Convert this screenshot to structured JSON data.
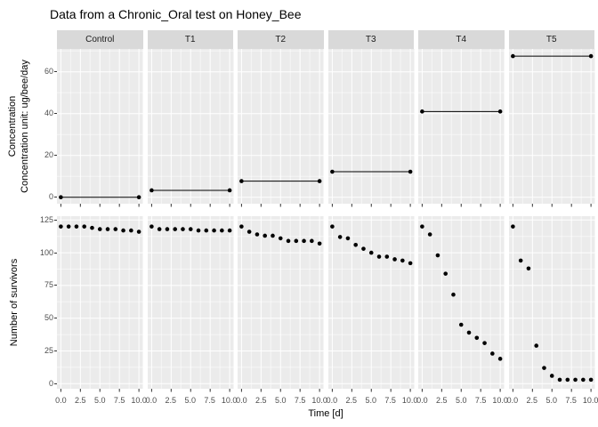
{
  "title": "Data from a Chronic_Oral test on Honey_Bee",
  "colors": {
    "panel_bg": "#ebebeb",
    "strip_bg": "#d9d9d9",
    "strip_text": "#1a1a1a",
    "grid_major": "#ffffff",
    "grid_minor": "rgba(255,255,255,0.55)",
    "point": "#000000",
    "line": "#000000",
    "tick_mark": "#333333",
    "tick_label": "#4d4d4d",
    "axis_title": "#000000",
    "title_text": "#000000"
  },
  "chart_data": {
    "type": "scatter",
    "facets": [
      "Control",
      "T1",
      "T2",
      "T3",
      "T4",
      "T5"
    ],
    "x": [
      0,
      1,
      2,
      3,
      4,
      5,
      6,
      7,
      8,
      9,
      10
    ],
    "xlabel": "Time [d]",
    "xticks": [
      0,
      2.5,
      5,
      7.5,
      10
    ],
    "xtick_labels": [
      "0.0",
      "2.5",
      "5.0",
      "7.5",
      "10.0"
    ],
    "xlim": [
      -0.5,
      10.5
    ],
    "grid": "on",
    "top": {
      "ylabel_line1": "Concentration",
      "ylabel_line2": "Concentration unit: ug/bee/day",
      "yticks": [
        0,
        20,
        40,
        60
      ],
      "yminor": [
        10,
        30,
        50,
        70
      ],
      "ylim": [
        -3.4,
        70.9
      ],
      "line_days": [
        0,
        10
      ],
      "concentration": [
        0,
        3.3,
        7.7,
        12.2,
        41,
        67.5
      ]
    },
    "bottom": {
      "ylabel": "Number of survivors",
      "yticks": [
        0,
        25,
        50,
        75,
        100,
        125
      ],
      "yminor": [
        12.5,
        37.5,
        62.5,
        87.5,
        112.5
      ],
      "ylim": [
        -3.9,
        127.9
      ],
      "series": [
        {
          "name": "Control",
          "values": [
            120,
            120,
            120,
            120,
            119,
            118,
            118,
            118,
            117,
            117,
            116
          ]
        },
        {
          "name": "T1",
          "values": [
            120,
            118,
            118,
            118,
            118,
            118,
            117,
            117,
            117,
            117,
            117
          ]
        },
        {
          "name": "T2",
          "values": [
            120,
            116,
            114,
            113,
            113,
            111,
            109,
            109,
            109,
            109,
            107
          ]
        },
        {
          "name": "T3",
          "values": [
            120,
            112,
            111,
            106,
            103,
            100,
            97,
            97,
            95,
            94,
            92
          ]
        },
        {
          "name": "T4",
          "values": [
            120,
            114,
            98,
            84,
            68,
            45,
            39,
            35,
            31,
            23,
            19
          ]
        },
        {
          "name": "T5",
          "values": [
            120,
            94,
            88,
            29,
            12,
            6,
            3,
            3,
            3,
            3,
            3
          ]
        }
      ]
    }
  }
}
